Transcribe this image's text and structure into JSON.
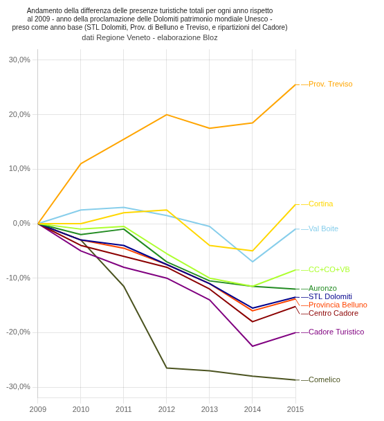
{
  "chart_data": {
    "type": "line",
    "title": "Andamento della differenza delle presenze turistiche totali per ogni anno rispetto\nal 2009 - anno della proclamazione delle Dolomiti patrimonio mondiale Unesco -\npreso come anno base (STL Dolomiti, Prov. di Belluno e Treviso, e ripartizioni del Cadore)",
    "subtitle": "dati Regione Veneto - elaborazione Bloz",
    "x": [
      2009,
      2010,
      2011,
      2012,
      2013,
      2014,
      2015
    ],
    "series": [
      {
        "name": "Prov. Treviso",
        "color": "#FFA500",
        "values": [
          0.0,
          0.11,
          0.155,
          0.2,
          0.175,
          0.185,
          0.255
        ]
      },
      {
        "name": "Cortina",
        "color": "#FFD700",
        "values": [
          0.0,
          0.0,
          0.02,
          0.025,
          -0.04,
          -0.05,
          0.035
        ]
      },
      {
        "name": "Val Boite",
        "color": "#87CEEB",
        "values": [
          0.0,
          0.025,
          0.03,
          0.015,
          -0.005,
          -0.07,
          -0.01
        ]
      },
      {
        "name": "CC+CO+VB",
        "color": "#ADFF2F",
        "values": [
          0.0,
          -0.01,
          -0.005,
          -0.055,
          -0.1,
          -0.115,
          -0.085
        ]
      },
      {
        "name": "Auronzo",
        "color": "#228B22",
        "values": [
          0.0,
          -0.02,
          -0.01,
          -0.07,
          -0.105,
          -0.115,
          -0.12
        ]
      },
      {
        "name": "STL Dolomiti",
        "color": "#00008B",
        "values": [
          0.0,
          -0.03,
          -0.04,
          -0.075,
          -0.11,
          -0.155,
          -0.135
        ]
      },
      {
        "name": "Provincia Belluno",
        "color": "#FF4500",
        "values": [
          0.0,
          -0.03,
          -0.045,
          -0.075,
          -0.11,
          -0.16,
          -0.138
        ]
      },
      {
        "name": "Centro Cadore",
        "color": "#8B0000",
        "values": [
          0.0,
          -0.04,
          -0.06,
          -0.08,
          -0.12,
          -0.18,
          -0.152
        ]
      },
      {
        "name": "Cadore Turistico",
        "color": "#800080",
        "values": [
          0.0,
          -0.05,
          -0.08,
          -0.1,
          -0.14,
          -0.225,
          -0.2
        ]
      },
      {
        "name": "Comelico",
        "color": "#4B5320",
        "values": [
          0.0,
          -0.03,
          -0.115,
          -0.265,
          -0.27,
          -0.28,
          -0.287
        ]
      }
    ],
    "annotations": [
      {
        "text": "—Prov. Treviso",
        "x": 2015,
        "y": 0.255,
        "color": "#FFA500"
      },
      {
        "text": "—Cortina",
        "x": 2015,
        "y": 0.035,
        "color": "#FFD700"
      },
      {
        "text": "—Val Boite",
        "x": 2015,
        "y": -0.01,
        "color": "#87CEEB"
      },
      {
        "text": "—CC+CO+VB",
        "x": 2015,
        "y": -0.085,
        "color": "#ADFF2F"
      },
      {
        "text": "—Auronzo",
        "x": 2015,
        "y": -0.12,
        "color": "#228B22"
      },
      {
        "text": "—STL Dolomiti",
        "x": 2015,
        "y": -0.135,
        "color": "#00008B"
      },
      {
        "text": "—Provincia Belluno",
        "x": 2015,
        "y": -0.138,
        "color": "#FF4500"
      },
      {
        "text": "—Centro Cadore",
        "x": 2015,
        "y": -0.152,
        "color": "#8B0000"
      },
      {
        "text": "—Cadore Turistico",
        "x": 2015,
        "y": -0.2,
        "color": "#800080"
      },
      {
        "text": "—Comelico",
        "x": 2015,
        "y": -0.287,
        "color": "#4B5320"
      }
    ],
    "xlim": [
      2009,
      2015
    ],
    "xticks": [
      2009,
      2010,
      2011,
      2012,
      2013,
      2014,
      2015
    ],
    "ylim": [
      -0.32,
      0.32
    ],
    "yticks": [
      {
        "value": -0.3,
        "label": "-30,0%"
      },
      {
        "value": -0.2,
        "label": "-20,0%"
      },
      {
        "value": -0.1,
        "label": "-10,0%"
      },
      {
        "value": 0.0,
        "label": "0,0%"
      },
      {
        "value": 0.1,
        "label": "10,0%"
      },
      {
        "value": 0.2,
        "label": "20,0%"
      },
      {
        "value": 0.3,
        "label": "30,0%"
      }
    ],
    "grid": true,
    "legend": false
  }
}
